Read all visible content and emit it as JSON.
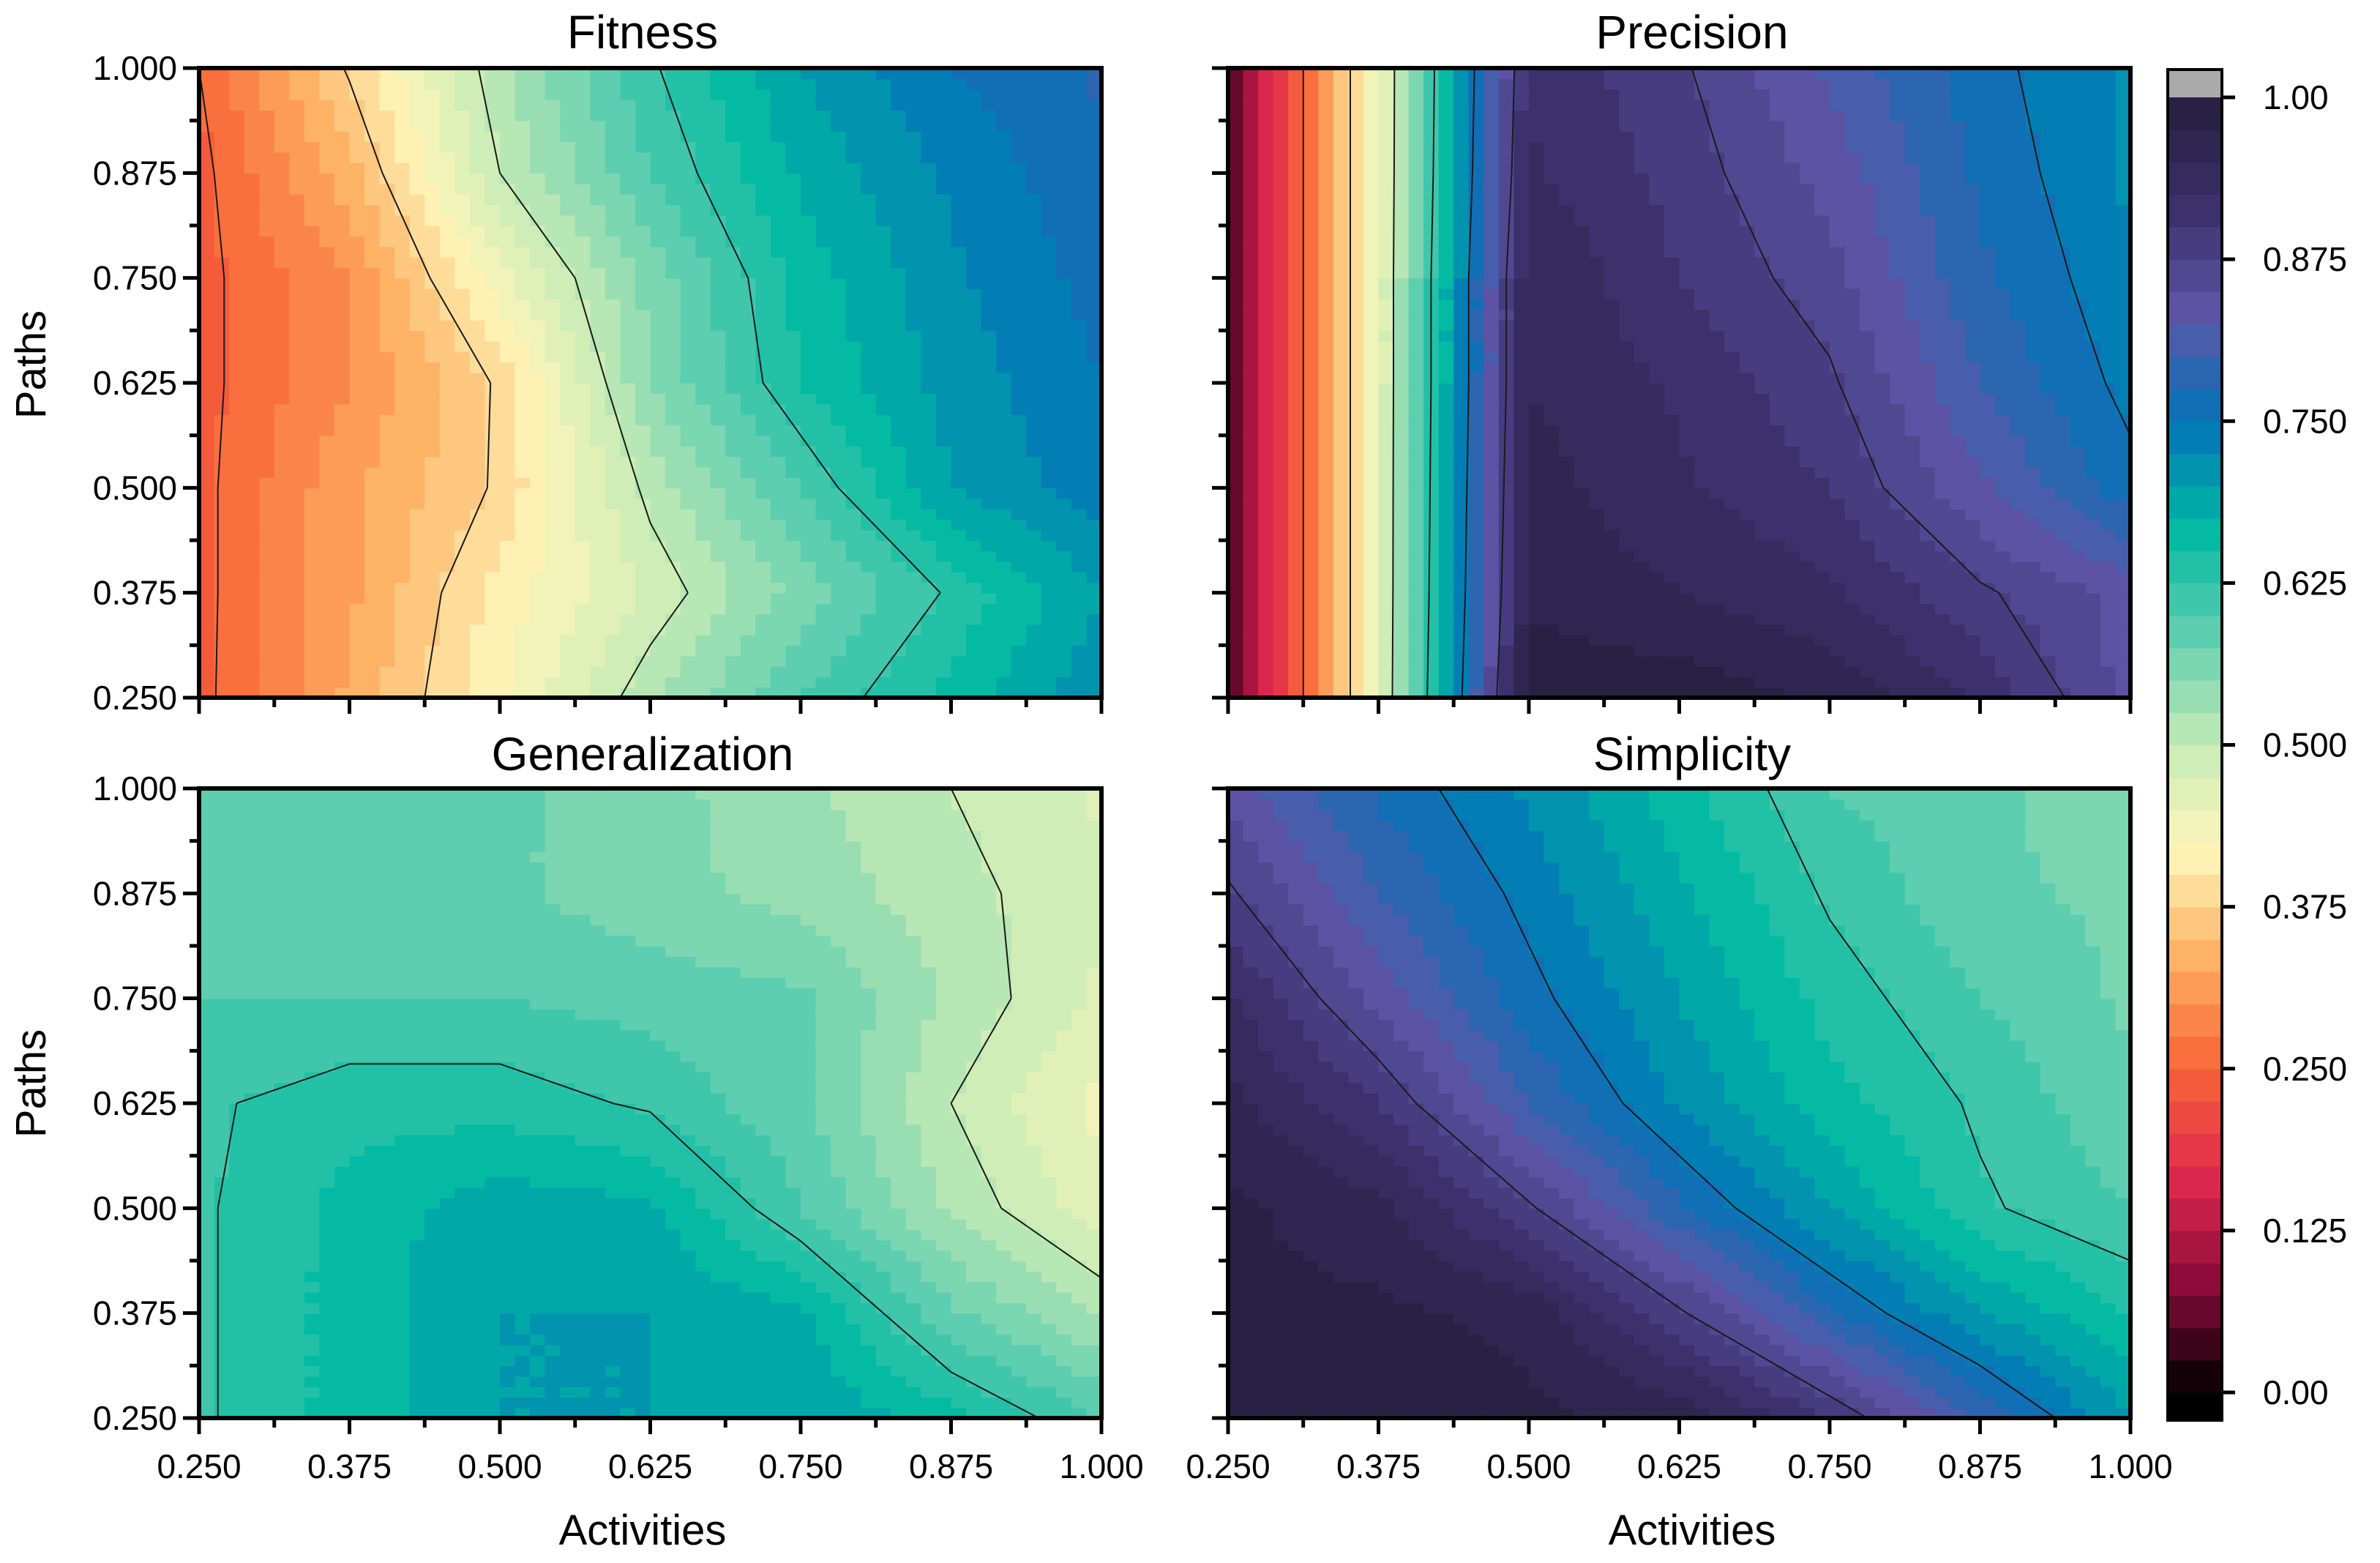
{
  "chart_data": {
    "type": "heatmap",
    "subtype": "filled contour",
    "panels": [
      {
        "title": "Fitness",
        "xlabel": "",
        "ylabel": "Paths",
        "x": [
          0.25,
          0.375,
          0.5,
          0.625,
          0.75,
          0.875,
          1.0
        ],
        "y": [
          0.25,
          0.375,
          0.5,
          0.625,
          0.75,
          0.875,
          1.0
        ],
        "z": [
          [
            0.24,
            0.33,
            0.42,
            0.52,
            0.6,
            0.66,
            0.72
          ],
          [
            0.24,
            0.32,
            0.41,
            0.48,
            0.56,
            0.63,
            0.7
          ],
          [
            0.24,
            0.32,
            0.38,
            0.51,
            0.6,
            0.7,
            0.74
          ],
          [
            0.24,
            0.3,
            0.38,
            0.55,
            0.65,
            0.71,
            0.75
          ],
          [
            0.24,
            0.3,
            0.44,
            0.56,
            0.66,
            0.72,
            0.76
          ],
          [
            0.24,
            0.34,
            0.5,
            0.6,
            0.68,
            0.73,
            0.77
          ],
          [
            0.25,
            0.38,
            0.52,
            0.62,
            0.7,
            0.75,
            0.78
          ]
        ],
        "contour_levels": [
          0.25,
          0.375,
          0.5,
          0.625
        ]
      },
      {
        "title": "Precision",
        "xlabel": "",
        "ylabel": "",
        "x": [
          0.25,
          0.375,
          0.5,
          0.625,
          0.75,
          0.875,
          1.0
        ],
        "y": [
          0.25,
          0.375,
          0.5,
          0.625,
          0.75,
          0.875,
          1.0
        ],
        "z": [
          [
            0.05,
            0.45,
            0.99,
            0.99,
            0.97,
            0.92,
            0.84
          ],
          [
            0.05,
            0.45,
            0.97,
            0.95,
            0.93,
            0.88,
            0.84
          ],
          [
            0.05,
            0.45,
            0.96,
            0.93,
            0.9,
            0.83,
            0.76
          ],
          [
            0.05,
            0.45,
            0.95,
            0.92,
            0.88,
            0.8,
            0.74
          ],
          [
            0.05,
            0.45,
            0.95,
            0.9,
            0.86,
            0.78,
            0.73
          ],
          [
            0.05,
            0.45,
            0.93,
            0.89,
            0.84,
            0.77,
            0.72
          ],
          [
            0.05,
            0.45,
            0.92,
            0.88,
            0.82,
            0.76,
            0.72
          ]
        ],
        "contour_levels": [
          0.25,
          0.375,
          0.5,
          0.625,
          0.75,
          0.875
        ]
      },
      {
        "title": "Generalization",
        "xlabel": "Activities",
        "ylabel": "Paths",
        "x": [
          0.25,
          0.375,
          0.5,
          0.625,
          0.75,
          0.875,
          1.0
        ],
        "y": [
          0.25,
          0.375,
          0.5,
          0.625,
          0.75,
          0.875,
          1.0
        ],
        "z": [
          [
            0.62,
            0.66,
            0.7,
            0.7,
            0.7,
            0.66,
            0.6
          ],
          [
            0.62,
            0.66,
            0.7,
            0.7,
            0.68,
            0.58,
            0.52
          ],
          [
            0.62,
            0.66,
            0.69,
            0.68,
            0.6,
            0.52,
            0.46
          ],
          [
            0.62,
            0.64,
            0.64,
            0.62,
            0.58,
            0.5,
            0.44
          ],
          [
            0.6,
            0.6,
            0.6,
            0.59,
            0.58,
            0.52,
            0.47
          ],
          [
            0.6,
            0.59,
            0.58,
            0.56,
            0.54,
            0.51,
            0.48
          ],
          [
            0.6,
            0.59,
            0.58,
            0.56,
            0.53,
            0.5,
            0.47
          ]
        ],
        "contour_levels": [
          0.5,
          0.625
        ]
      },
      {
        "title": "Simplicity",
        "xlabel": "Activities",
        "ylabel": "",
        "x": [
          0.25,
          0.375,
          0.5,
          0.625,
          0.75,
          0.875,
          1.0
        ],
        "y": [
          0.25,
          0.375,
          0.5,
          0.625,
          0.75,
          0.875,
          1.0
        ],
        "z": [
          [
            0.98,
            0.98,
            0.98,
            0.97,
            0.9,
            0.8,
            0.7
          ],
          [
            0.98,
            0.98,
            0.97,
            0.88,
            0.78,
            0.7,
            0.65
          ],
          [
            0.98,
            0.96,
            0.88,
            0.78,
            0.7,
            0.63,
            0.6
          ],
          [
            0.96,
            0.9,
            0.8,
            0.72,
            0.66,
            0.62,
            0.58
          ],
          [
            0.93,
            0.84,
            0.76,
            0.7,
            0.64,
            0.6,
            0.57
          ],
          [
            0.88,
            0.8,
            0.74,
            0.68,
            0.62,
            0.58,
            0.57
          ],
          [
            0.84,
            0.77,
            0.72,
            0.66,
            0.6,
            0.58,
            0.56
          ]
        ],
        "contour_levels": [
          0.625,
          0.75,
          0.875
        ]
      }
    ],
    "x_ticks": [
      "0.250",
      "0.375",
      "0.500",
      "0.625",
      "0.750",
      "0.875",
      "1.000"
    ],
    "y_ticks": [
      "0.250",
      "0.375",
      "0.500",
      "0.625",
      "0.750",
      "0.875",
      "1.000"
    ],
    "xlim": [
      0.25,
      1.0
    ],
    "ylim": [
      0.25,
      1.0
    ],
    "colorbar": {
      "range": [
        0.0,
        1.0
      ],
      "ticks": [
        "0.00",
        "0.125",
        "0.250",
        "0.375",
        "0.500",
        "0.625",
        "0.750",
        "0.875",
        "1.00"
      ],
      "n_levels": 40,
      "overflow_color": "#aaaaaa",
      "underflow_color": "#000000"
    },
    "colormap": [
      "#000000",
      "#8a0a3a",
      "#e0284e",
      "#f86438",
      "#fdae61",
      "#fff5b8",
      "#c6ebb6",
      "#62cfb0",
      "#00b9a2",
      "#0474b8",
      "#5e55a8",
      "#3a2f69",
      "#261e3e"
    ]
  }
}
